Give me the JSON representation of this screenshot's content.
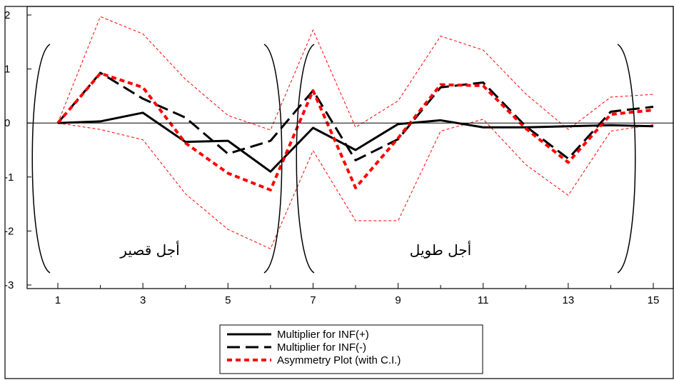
{
  "chart_data": {
    "type": "line",
    "title": "",
    "xlabel": "",
    "ylabel": "",
    "x": [
      1,
      2,
      3,
      4,
      5,
      6,
      7,
      8,
      9,
      10,
      11,
      12,
      13,
      14,
      15
    ],
    "x_tick_labels": [
      "1",
      "3",
      "5",
      "7",
      "9",
      "11",
      "13",
      "15"
    ],
    "y_tick_labels": [
      "2",
      "1",
      "0",
      "-1",
      "-2",
      "-3"
    ],
    "xlim": [
      1,
      15
    ],
    "ylim": [
      -3,
      2
    ],
    "grid": false,
    "zero_line": true,
    "legend_position": "bottom-center",
    "series": [
      {
        "name": "Multiplier for INF(+)",
        "style": "solid",
        "color": "#000000",
        "values": [
          0,
          0.03,
          0.19,
          -0.35,
          -0.33,
          -0.9,
          -0.09,
          -0.5,
          -0.02,
          0.05,
          -0.08,
          -0.08,
          -0.06,
          -0.04,
          -0.06
        ]
      },
      {
        "name": "Multiplier for INF(-)",
        "style": "long-dash",
        "color": "#000000",
        "values": [
          0,
          0.93,
          0.45,
          0.1,
          -0.57,
          -0.33,
          0.6,
          -0.69,
          -0.3,
          0.66,
          0.75,
          -0.06,
          -0.66,
          0.21,
          0.3
        ]
      },
      {
        "name": "Asymmetry Plot (with C.I.)",
        "style": "dash",
        "color": "#ff0000",
        "values": [
          0,
          0.92,
          0.66,
          -0.37,
          -0.93,
          -1.24,
          0.6,
          -1.2,
          -0.28,
          0.71,
          0.69,
          -0.1,
          -0.73,
          0.16,
          0.24
        ]
      }
    ],
    "confidence_band": {
      "color": "#ff0000",
      "upper": [
        0,
        1.97,
        1.65,
        0.81,
        0.14,
        -0.13,
        1.72,
        -0.08,
        0.41,
        1.61,
        1.35,
        0.54,
        -0.12,
        0.48,
        0.53
      ],
      "lower": [
        0,
        -0.12,
        -0.31,
        -1.31,
        -1.97,
        -2.33,
        -0.51,
        -1.81,
        -1.81,
        -0.15,
        0.07,
        -0.77,
        -1.34,
        -0.15,
        -0.03
      ]
    },
    "annotations": [
      {
        "text": "أجل قصير",
        "from_x": 0.7,
        "to_x": 6.4
      },
      {
        "text": "أجل طويل",
        "from_x": 6.6,
        "to_x": 14.0
      }
    ]
  }
}
